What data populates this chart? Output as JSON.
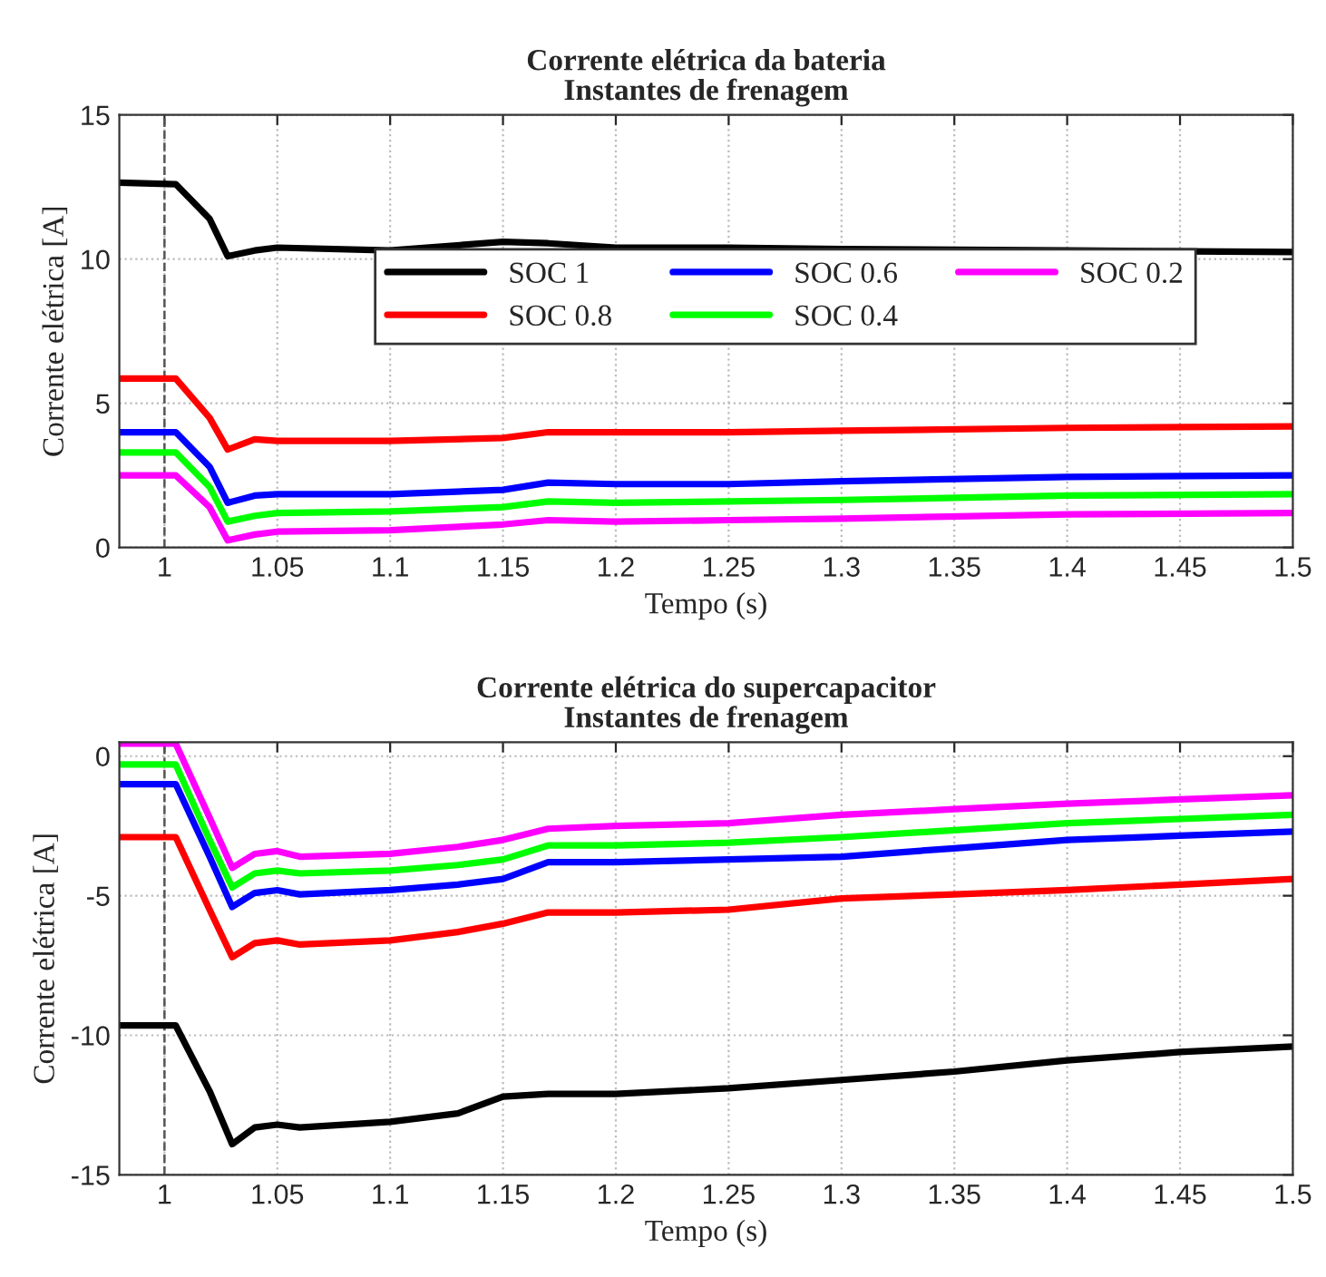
{
  "chart_data": [
    {
      "type": "line",
      "title": "Corrente elétrica da bateria",
      "subtitle": "Instantes de frenagem",
      "xlabel": "Tempo (s)",
      "ylabel": "Corrente elétrica [A]",
      "xlim": [
        0.98,
        1.5
      ],
      "xticks": [
        1,
        1.05,
        1.1,
        1.15,
        1.2,
        1.25,
        1.3,
        1.35,
        1.4,
        1.45,
        1.5
      ],
      "ylim": [
        0,
        15
      ],
      "yticks": [
        0,
        5,
        10,
        15
      ],
      "grid": true,
      "legend": "right",
      "line_style": "solid",
      "ref_lines": [
        {
          "axis": "x",
          "value": 1,
          "color": "#555555",
          "line_style": "dashed"
        }
      ],
      "x": [
        0.98,
        1.005,
        1.02,
        1.028,
        1.04,
        1.05,
        1.1,
        1.15,
        1.17,
        1.2,
        1.25,
        1.3,
        1.4,
        1.5
      ],
      "series": [
        {
          "name": "SOC 1",
          "color": "#000000",
          "values": [
            12.65,
            12.6,
            11.4,
            10.1,
            10.3,
            10.4,
            10.3,
            10.6,
            10.55,
            10.4,
            10.4,
            10.35,
            10.3,
            10.25
          ]
        },
        {
          "name": "SOC 0.8",
          "color": "#ff0000",
          "values": [
            5.86,
            5.86,
            4.5,
            3.4,
            3.75,
            3.7,
            3.7,
            3.8,
            4.0,
            4.0,
            4.0,
            4.05,
            4.15,
            4.2
          ]
        },
        {
          "name": "SOC 0.6",
          "color": "#0000ff",
          "values": [
            4.0,
            4.0,
            2.8,
            1.55,
            1.8,
            1.85,
            1.85,
            2.0,
            2.25,
            2.2,
            2.2,
            2.3,
            2.45,
            2.5
          ]
        },
        {
          "name": "SOC 0.4",
          "color": "#00ff00",
          "values": [
            3.3,
            3.3,
            2.1,
            0.9,
            1.1,
            1.2,
            1.25,
            1.4,
            1.6,
            1.55,
            1.6,
            1.65,
            1.8,
            1.85
          ]
        },
        {
          "name": "SOC 0.2",
          "color": "#ff00ff",
          "values": [
            2.5,
            2.5,
            1.4,
            0.25,
            0.45,
            0.55,
            0.6,
            0.8,
            0.95,
            0.9,
            0.95,
            1.0,
            1.15,
            1.2
          ]
        }
      ]
    },
    {
      "type": "line",
      "title": "Corrente elétrica do supercapacitor",
      "subtitle": "Instantes de frenagem",
      "xlabel": "Tempo (s)",
      "ylabel": "Corrente elétrica [A]",
      "xlim": [
        0.98,
        1.5
      ],
      "xticks": [
        1,
        1.05,
        1.1,
        1.15,
        1.2,
        1.25,
        1.3,
        1.35,
        1.4,
        1.45,
        1.5
      ],
      "ylim": [
        -15,
        0.5
      ],
      "yticks": [
        -15,
        -10,
        -5,
        0
      ],
      "grid": true,
      "line_style": "solid",
      "ref_lines": [
        {
          "axis": "x",
          "value": 1,
          "color": "#555555",
          "line_style": "dashed"
        }
      ],
      "x": [
        0.98,
        1.005,
        1.02,
        1.03,
        1.04,
        1.05,
        1.06,
        1.1,
        1.13,
        1.15,
        1.17,
        1.2,
        1.25,
        1.3,
        1.35,
        1.4,
        1.45,
        1.5
      ],
      "series": [
        {
          "color": "#000000",
          "values": [
            -9.65,
            -9.65,
            -12.0,
            -13.9,
            -13.3,
            -13.2,
            -13.3,
            -13.1,
            -12.8,
            -12.2,
            -12.1,
            -12.1,
            -11.9,
            -11.6,
            -11.3,
            -10.9,
            -10.6,
            -10.4
          ]
        },
        {
          "color": "#ff0000",
          "values": [
            -2.9,
            -2.9,
            -5.5,
            -7.2,
            -6.7,
            -6.6,
            -6.75,
            -6.6,
            -6.3,
            -6.0,
            -5.6,
            -5.6,
            -5.5,
            -5.1,
            -4.95,
            -4.8,
            -4.6,
            -4.4
          ]
        },
        {
          "color": "#0000ff",
          "values": [
            -1.0,
            -1.0,
            -3.6,
            -5.4,
            -4.9,
            -4.8,
            -4.95,
            -4.8,
            -4.6,
            -4.4,
            -3.8,
            -3.8,
            -3.7,
            -3.6,
            -3.3,
            -3.0,
            -2.85,
            -2.7
          ]
        },
        {
          "color": "#00ff00",
          "values": [
            -0.3,
            -0.3,
            -3.0,
            -4.7,
            -4.2,
            -4.1,
            -4.2,
            -4.1,
            -3.9,
            -3.7,
            -3.2,
            -3.2,
            -3.1,
            -2.9,
            -2.65,
            -2.4,
            -2.25,
            -2.1
          ]
        },
        {
          "color": "#ff00ff",
          "values": [
            0.45,
            0.45,
            -2.2,
            -4.0,
            -3.5,
            -3.4,
            -3.6,
            -3.5,
            -3.25,
            -3.0,
            -2.6,
            -2.5,
            -2.4,
            -2.1,
            -1.9,
            -1.7,
            -1.55,
            -1.4
          ]
        }
      ]
    }
  ]
}
